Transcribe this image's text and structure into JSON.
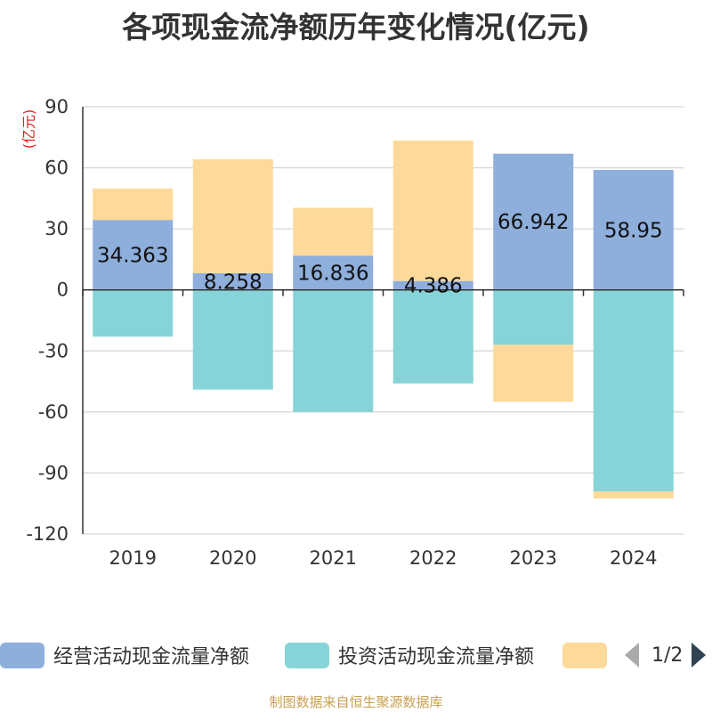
{
  "chart_data": {
    "type": "bar",
    "stacked": true,
    "title": "各项现金流净额历年变化情况(亿元)",
    "ylabel": "(亿元)",
    "ylim": [
      -120,
      90
    ],
    "yticks": [
      90,
      60,
      30,
      0,
      -30,
      -60,
      -90,
      -120
    ],
    "grid": true,
    "legend_position": "bottom",
    "categories": [
      "2019",
      "2020",
      "2021",
      "2022",
      "2023",
      "2024"
    ],
    "series": [
      {
        "name": "经营活动现金流量净额",
        "color": "#8eaedb",
        "values": [
          34.363,
          8.258,
          16.836,
          4.386,
          66.942,
          58.95
        ],
        "labels": [
          "34.363",
          "8.258",
          "16.836",
          "4.386",
          "66.942",
          "58.95"
        ]
      },
      {
        "name": "投资活动现金流量净额",
        "color": "#86d4d8",
        "values": [
          -23,
          -49,
          -60,
          -46,
          -27,
          -99
        ]
      },
      {
        "name": "",
        "color": "#fdd99a",
        "values": [
          15.5,
          56,
          23.5,
          69,
          -28,
          -3.5
        ]
      }
    ]
  },
  "legend": {
    "items": [
      "经营活动现金流量净额",
      "投资活动现金流量净额",
      ""
    ],
    "page_text": "1/2"
  },
  "source_note": "制图数据来自恒生聚源数据库"
}
